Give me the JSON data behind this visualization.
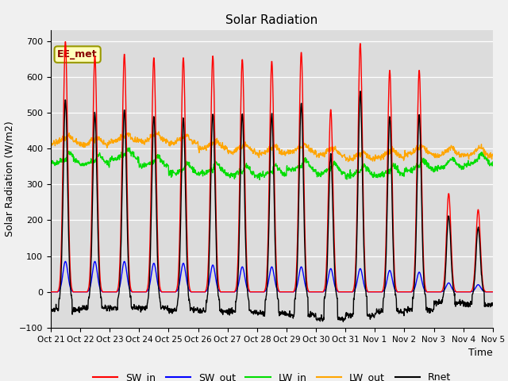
{
  "title": "Solar Radiation",
  "xlabel": "Time",
  "ylabel": "Solar Radiation (W/m2)",
  "ylim": [
    -100,
    730
  ],
  "yticks": [
    -100,
    0,
    100,
    200,
    300,
    400,
    500,
    600,
    700
  ],
  "annotation_text": "EE_met",
  "bg_color": "#dcdcdc",
  "line_colors": {
    "SW_in": "#ff0000",
    "SW_out": "#0000ff",
    "LW_in": "#00dd00",
    "LW_out": "#ffa500",
    "Rnet": "#000000"
  },
  "lw": 1.0,
  "num_days": 15,
  "xtick_labels": [
    "Oct 21",
    "Oct 22",
    "Oct 23",
    "Oct 24",
    "Oct 25",
    "Oct 26",
    "Oct 27",
    "Oct 28",
    "Oct 29",
    "Oct 30",
    "Oct 31",
    "Nov 1",
    "Nov 2",
    "Nov 3",
    "Nov 4",
    "Nov 5"
  ],
  "SW_in_peaks": [
    700,
    660,
    665,
    655,
    655,
    660,
    650,
    645,
    670,
    510,
    695,
    620,
    620,
    275,
    230,
    0
  ],
  "SW_out_peaks": [
    85,
    85,
    85,
    80,
    80,
    75,
    70,
    70,
    70,
    65,
    65,
    60,
    55,
    25,
    20,
    0
  ],
  "LW_in_base": [
    360,
    355,
    370,
    350,
    330,
    330,
    325,
    325,
    340,
    330,
    325,
    325,
    340,
    345,
    355,
    360
  ],
  "LW_out_base": [
    415,
    410,
    420,
    420,
    415,
    400,
    390,
    385,
    390,
    380,
    370,
    375,
    385,
    380,
    380,
    370
  ],
  "Rnet_night": [
    -50,
    -45,
    -45,
    -45,
    -50,
    -55,
    -55,
    -60,
    -65,
    -75,
    -65,
    -55,
    -50,
    -30,
    -35,
    -30
  ]
}
